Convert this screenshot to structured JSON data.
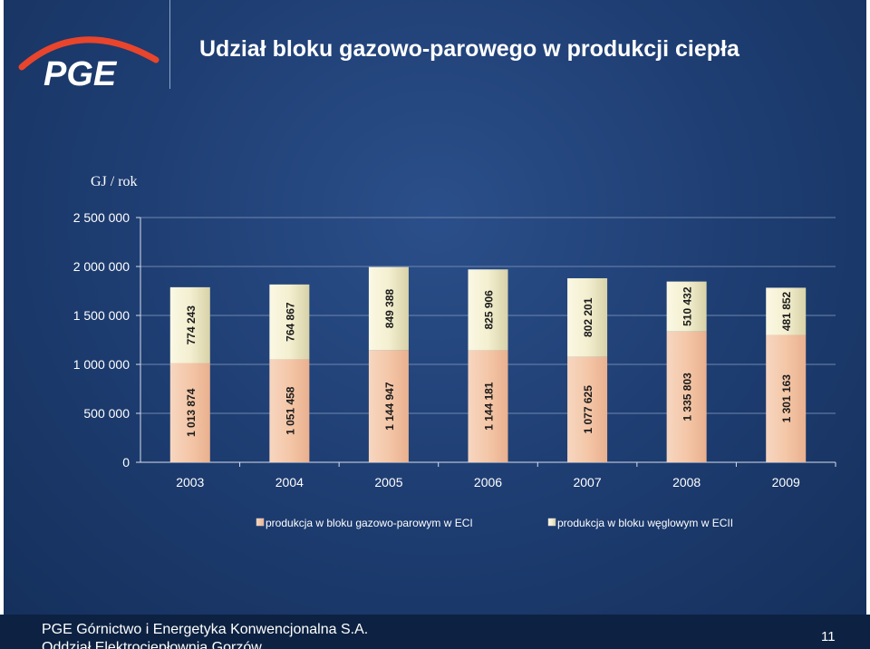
{
  "slide": {
    "title": "Udział bloku gazowo-parowego w produkcji ciepła",
    "logo_text": "PGE",
    "footer_line1": "PGE Górnictwo i Energetyka  Konwencjonalna S.A.",
    "footer_line2": "Oddział Elektrociepłownia Gorzów",
    "page_number": "11"
  },
  "colors": {
    "panel": "#1d3c70",
    "gas_bar": "#f4c7a8",
    "coal_bar": "#f3efd0",
    "logo_arc": "#e8452c",
    "text": "#ffffff"
  },
  "chart_data": {
    "type": "bar",
    "stacked": true,
    "ylabel": "GJ / rok",
    "ylim": [
      0,
      2500000
    ],
    "y_ticks": [
      "0",
      "500 000",
      "1 000 000",
      "1 500 000",
      "2 000 000",
      "2 500 000"
    ],
    "y_tick_values": [
      0,
      500000,
      1000000,
      1500000,
      2000000,
      2500000
    ],
    "categories": [
      "2003",
      "2004",
      "2005",
      "2006",
      "2007",
      "2008",
      "2009"
    ],
    "series": [
      {
        "name": "produkcja w bloku gazowo-parowym w ECI",
        "values": [
          1013874,
          1051458,
          1144947,
          1144181,
          1077625,
          1335803,
          1301163
        ],
        "labels": [
          "1 013 874",
          "1 051 458",
          "1 144 947",
          "1 144 181",
          "1 077 625",
          "1 335 803",
          "1 301 163"
        ]
      },
      {
        "name": "produkcja w bloku węglowym w ECII",
        "values": [
          774243,
          764867,
          849388,
          825906,
          802201,
          510432,
          481852
        ],
        "labels": [
          "774 243",
          "764 867",
          "849 388",
          "825 906",
          "802 201",
          "510 432",
          "481 852"
        ]
      }
    ],
    "legend_position": "bottom",
    "grid": true
  }
}
